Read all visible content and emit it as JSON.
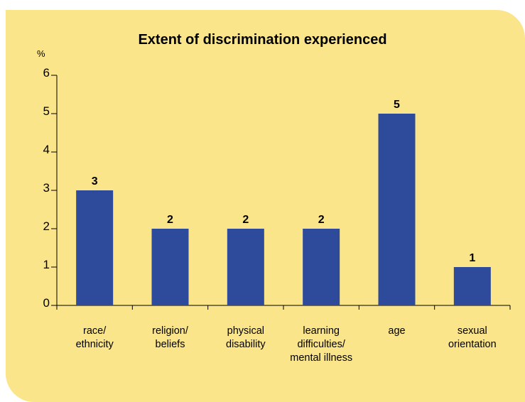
{
  "chart_data": {
    "type": "bar",
    "title": "Extent of discrimination experienced",
    "y_unit": "%",
    "categories": [
      [
        "race/",
        "ethnicity"
      ],
      [
        "religion/",
        "beliefs"
      ],
      [
        "physical",
        "disability"
      ],
      [
        "learning",
        "difficulties/",
        "mental illness"
      ],
      [
        "age"
      ],
      [
        "sexual",
        "orientation"
      ]
    ],
    "values": [
      3,
      2,
      2,
      2,
      5,
      1
    ],
    "data_labels": [
      "3",
      "2",
      "2",
      "2",
      "5",
      "1"
    ],
    "ylim": [
      0,
      6
    ],
    "yticks": [
      "0",
      "1",
      "2",
      "3",
      "4",
      "5",
      "6"
    ],
    "grid": false,
    "legend": "none",
    "colors": {
      "panel": "#fbe58a",
      "bar": "#2e4a9a",
      "axis": "#000000"
    }
  }
}
